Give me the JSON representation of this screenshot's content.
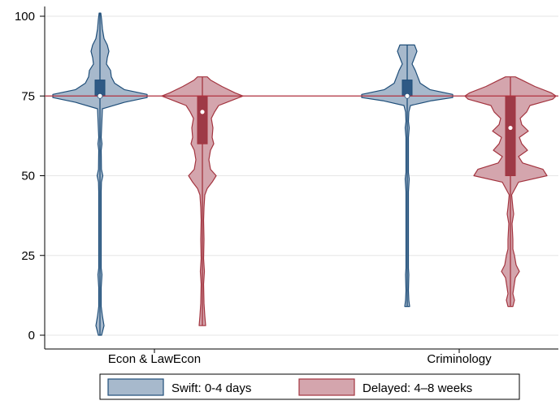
{
  "chart_data": {
    "type": "violin",
    "categories": [
      "Econ & LawEcon",
      "Criminology"
    ],
    "ylim": [
      0,
      100
    ],
    "y_ticks": [
      0,
      25,
      50,
      75,
      100
    ],
    "reference_line_y": 75,
    "grid": "horizontal",
    "legend_position": "bottom",
    "series": [
      {
        "name": "Swift:  0-4 days",
        "fill": "#a7b9cc",
        "stroke": "#1f4e79",
        "box_fill": "#2f5a85",
        "groups": [
          {
            "category": "Econ & LawEcon",
            "min": 0,
            "q1": 75,
            "median": 75,
            "q3": 80,
            "max": 101,
            "density": [
              [
                0,
                2
              ],
              [
                3,
                5
              ],
              [
                6,
                3
              ],
              [
                9,
                1.5
              ],
              [
                15,
                1.5
              ],
              [
                19,
                2.5
              ],
              [
                21,
                1.5
              ],
              [
                30,
                1.5
              ],
              [
                45,
                1.5
              ],
              [
                48,
                1.8
              ],
              [
                50,
                3.5
              ],
              [
                52,
                1.8
              ],
              [
                58,
                1.5
              ],
              [
                60,
                2.5
              ],
              [
                62,
                1.5
              ],
              [
                68,
                2.5
              ],
              [
                71,
                3
              ],
              [
                73,
                30
              ],
              [
                74.5,
                58
              ],
              [
                75.5,
                58
              ],
              [
                77,
                30
              ],
              [
                79,
                18
              ],
              [
                81,
                14
              ],
              [
                83,
                13
              ],
              [
                85,
                8
              ],
              [
                87,
                9
              ],
              [
                89,
                11
              ],
              [
                91,
                9
              ],
              [
                93,
                5
              ],
              [
                96,
                3
              ],
              [
                99,
                2
              ],
              [
                101,
                1
              ]
            ]
          },
          {
            "category": "Criminology",
            "min": 9,
            "q1": 75,
            "median": 75,
            "q3": 80,
            "max": 91,
            "density": [
              [
                9,
                3
              ],
              [
                11,
                2
              ],
              [
                14,
                1.5
              ],
              [
                19,
                2
              ],
              [
                21,
                1.5
              ],
              [
                30,
                1.5
              ],
              [
                45,
                1.5
              ],
              [
                49,
                2.5
              ],
              [
                51,
                1.5
              ],
              [
                58,
                1.5
              ],
              [
                62,
                1.5
              ],
              [
                65,
                2.5
              ],
              [
                67,
                1.5
              ],
              [
                70,
                2
              ],
              [
                72,
                4
              ],
              [
                73.5,
                30
              ],
              [
                74.5,
                56
              ],
              [
                75.5,
                56
              ],
              [
                77,
                28
              ],
              [
                79,
                16
              ],
              [
                81,
                13
              ],
              [
                83,
                10
              ],
              [
                85,
                6
              ],
              [
                87,
                9
              ],
              [
                89,
                12
              ],
              [
                91,
                9
              ]
            ]
          }
        ]
      },
      {
        "name": "Delayed: 4–8 weeks",
        "fill": "#d4a5ad",
        "stroke": "#a3343f",
        "box_fill": "#9e3a47",
        "groups": [
          {
            "category": "Econ & LawEcon",
            "min": 3,
            "q1": 60,
            "median": 70,
            "q3": 75,
            "max": 81,
            "density": [
              [
                3,
                4
              ],
              [
                6,
                3
              ],
              [
                10,
                2
              ],
              [
                16,
                1.5
              ],
              [
                20,
                2.5
              ],
              [
                24,
                1.5
              ],
              [
                30,
                2
              ],
              [
                36,
                1.5
              ],
              [
                40,
                2
              ],
              [
                44,
                3
              ],
              [
                46,
                6
              ],
              [
                48,
                12
              ],
              [
                50,
                17
              ],
              [
                52,
                10
              ],
              [
                55,
                8
              ],
              [
                58,
                10
              ],
              [
                60,
                14
              ],
              [
                62,
                12
              ],
              [
                65,
                13
              ],
              [
                68,
                11
              ],
              [
                70,
                15
              ],
              [
                72,
                20
              ],
              [
                74,
                40
              ],
              [
                75,
                50
              ],
              [
                76,
                40
              ],
              [
                78,
                24
              ],
              [
                80,
                10
              ],
              [
                81,
                6
              ]
            ]
          },
          {
            "category": "Criminology",
            "min": 9,
            "q1": 50,
            "median": 65,
            "q3": 75,
            "max": 81,
            "density": [
              [
                9,
                3
              ],
              [
                11,
                5
              ],
              [
                13,
                3
              ],
              [
                18,
                6
              ],
              [
                20,
                11
              ],
              [
                22,
                7
              ],
              [
                25,
                5
              ],
              [
                27,
                3
              ],
              [
                30,
                3
              ],
              [
                35,
                2
              ],
              [
                38,
                4
              ],
              [
                40,
                3
              ],
              [
                44,
                1.5
              ],
              [
                48,
                10
              ],
              [
                50,
                45
              ],
              [
                52,
                40
              ],
              [
                54,
                15
              ],
              [
                56,
                10
              ],
              [
                58,
                21
              ],
              [
                60,
                14
              ],
              [
                62,
                11
              ],
              [
                64,
                22
              ],
              [
                66,
                14
              ],
              [
                68,
                12
              ],
              [
                70,
                20
              ],
              [
                72,
                24
              ],
              [
                74,
                52
              ],
              [
                75,
                56
              ],
              [
                76,
                50
              ],
              [
                78,
                30
              ],
              [
                80,
                14
              ],
              [
                81,
                6
              ]
            ]
          }
        ]
      }
    ]
  }
}
